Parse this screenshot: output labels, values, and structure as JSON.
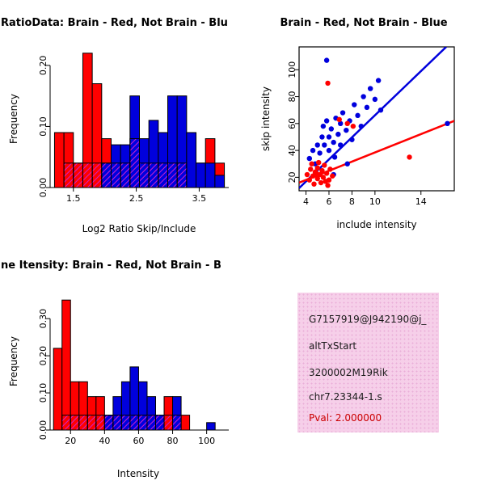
{
  "accent_colors": {
    "brain_red": "#FF0000",
    "not_brain_blue": "#0000DD",
    "overlap_hatch": "#CC22CC"
  },
  "info_box": {
    "bg_color": "#F6CFE9",
    "lines": [
      "G7157919@J942190@j_",
      "altTxStart",
      "3200002M19Rik",
      "chr7.23344-1.s"
    ],
    "pval": "Pval: 2.000000",
    "pval_color": "#CC0000"
  },
  "chart_data": [
    {
      "id": "hist-ratio",
      "type": "bar",
      "title": "RatioData: Brain - Red, Not Brain - Blu",
      "xlabel": "Log2 Ratio Skip/Include",
      "ylabel": "Frequency",
      "bin_start": 1.2,
      "bin_width": 0.15,
      "xlim": [
        1.13,
        3.97
      ],
      "ylim": [
        0,
        0.225
      ],
      "xticks": [
        1.5,
        2.5,
        3.5
      ],
      "xtick_labels": [
        "1.5",
        "2.5",
        "3.5"
      ],
      "yticks": [
        0,
        0.1,
        0.2
      ],
      "ytick_labels": [
        "0.00",
        "0.10",
        "0.20"
      ],
      "grid": false,
      "series": [
        {
          "name": "brain-red",
          "color": "#FF0000",
          "values": [
            0.09,
            0.09,
            0.04,
            0.22,
            0.17,
            0.08,
            0.04,
            0.04,
            0.04,
            0.04,
            0.08,
            0.04,
            0.04,
            0,
            0,
            0.04,
            0.08,
            0.04
          ]
        },
        {
          "name": "not-brain-blue",
          "color": "#0000DD",
          "values": [
            0,
            0,
            0,
            0,
            0,
            0.04,
            0.07,
            0.07,
            0.15,
            0.08,
            0.11,
            0.09,
            0.15,
            0.15,
            0.09,
            0.04,
            0.04,
            0.02
          ]
        },
        {
          "name": "overlap-hatched",
          "color": "#CC22CC",
          "hatch": true,
          "values": [
            0,
            0.04,
            0.04,
            0.04,
            0.04,
            0.04,
            0.04,
            0.04,
            0.08,
            0.04,
            0.04,
            0.04,
            0.04,
            0.04,
            0,
            0,
            0,
            0
          ]
        }
      ]
    },
    {
      "id": "scatter-intensity",
      "type": "scatter",
      "title": "Brain - Red, Not Brain - Blue",
      "xlabel": "include intensity",
      "ylabel": "skip intensity",
      "xlim": [
        3.4,
        16.9
      ],
      "ylim": [
        10,
        117
      ],
      "xticks": [
        4,
        6,
        8,
        10,
        14
      ],
      "xtick_labels": [
        "4",
        "6",
        "8",
        "10",
        "14"
      ],
      "yticks": [
        20,
        40,
        60,
        80,
        100
      ],
      "ytick_labels": [
        "20",
        "40",
        "60",
        "80",
        "100"
      ],
      "grid": false,
      "legend": "none",
      "series": [
        {
          "name": "not-brain-blue",
          "color": "#0000DD",
          "points": [
            [
              4.3,
              34
            ],
            [
              4.6,
              40
            ],
            [
              4.8,
              30
            ],
            [
              5.0,
              44
            ],
            [
              5.2,
              38
            ],
            [
              5.4,
              50
            ],
            [
              5.5,
              58
            ],
            [
              5.6,
              44
            ],
            [
              5.8,
              62
            ],
            [
              5.8,
              107
            ],
            [
              6.0,
              50
            ],
            [
              6.0,
              40
            ],
            [
              6.2,
              56
            ],
            [
              6.4,
              46
            ],
            [
              6.5,
              35
            ],
            [
              6.6,
              64
            ],
            [
              6.8,
              52
            ],
            [
              7.0,
              60
            ],
            [
              7.0,
              44
            ],
            [
              7.2,
              68
            ],
            [
              7.5,
              55
            ],
            [
              7.8,
              62
            ],
            [
              8.0,
              48
            ],
            [
              8.2,
              74
            ],
            [
              8.5,
              66
            ],
            [
              8.8,
              58
            ],
            [
              9.0,
              80
            ],
            [
              9.3,
              72
            ],
            [
              9.6,
              86
            ],
            [
              10.0,
              78
            ],
            [
              10.3,
              92
            ],
            [
              10.5,
              70
            ],
            [
              6.4,
              22
            ],
            [
              7.6,
              30
            ],
            [
              16.3,
              60
            ]
          ]
        },
        {
          "name": "brain-red",
          "color": "#FF0000",
          "points": [
            [
              4.1,
              22
            ],
            [
              4.3,
              18
            ],
            [
              4.4,
              26
            ],
            [
              4.6,
              21
            ],
            [
              4.7,
              15
            ],
            [
              4.8,
              24
            ],
            [
              5.0,
              19
            ],
            [
              5.0,
              27
            ],
            [
              5.2,
              22
            ],
            [
              5.3,
              16
            ],
            [
              5.4,
              25
            ],
            [
              5.5,
              20
            ],
            [
              5.6,
              29
            ],
            [
              5.8,
              23
            ],
            [
              6.0,
              18
            ],
            [
              6.1,
              26
            ],
            [
              6.3,
              21
            ],
            [
              4.5,
              30
            ],
            [
              5.1,
              31
            ],
            [
              5.9,
              14
            ],
            [
              5.7,
              17
            ],
            [
              4.9,
              23
            ],
            [
              5.9,
              90
            ],
            [
              6.9,
              63
            ],
            [
              7.6,
              60
            ],
            [
              8.1,
              58
            ],
            [
              13.0,
              35
            ]
          ]
        }
      ],
      "lines": [
        {
          "name": "blue-fit-line",
          "color": "#0000DD",
          "x1": 3.4,
          "y1": 12,
          "x2": 16.2,
          "y2": 117
        },
        {
          "name": "red-fit-line",
          "color": "#FF0000",
          "x1": 3.4,
          "y1": 16,
          "x2": 16.9,
          "y2": 62
        }
      ]
    },
    {
      "id": "hist-intensity",
      "type": "bar",
      "title": "ne Itensity: Brain - Red, Not Brain - B",
      "xlabel": "Intensity",
      "ylabel": "Frequency",
      "bin_start": 10,
      "bin_width": 5,
      "xlim": [
        8,
        113
      ],
      "ylim": [
        0,
        0.37
      ],
      "xticks": [
        20,
        40,
        60,
        80,
        100
      ],
      "xtick_labels": [
        "20",
        "40",
        "60",
        "80",
        "100"
      ],
      "yticks": [
        0,
        0.1,
        0.2,
        0.3
      ],
      "ytick_labels": [
        "0.00",
        "0.10",
        "0.20",
        "0.30"
      ],
      "grid": false,
      "series": [
        {
          "name": "brain-red",
          "color": "#FF0000",
          "values": [
            0.22,
            0.35,
            0.13,
            0.13,
            0.09,
            0.09,
            0.04,
            0.04,
            0,
            0,
            0,
            0,
            0,
            0.09,
            0,
            0.04,
            0,
            0,
            0,
            0
          ]
        },
        {
          "name": "not-brain-blue",
          "color": "#0000DD",
          "values": [
            0,
            0,
            0,
            0,
            0,
            0,
            0.04,
            0.09,
            0.13,
            0.17,
            0.13,
            0.09,
            0.04,
            0,
            0.09,
            0,
            0,
            0,
            0.02,
            0
          ]
        },
        {
          "name": "overlap-hatched",
          "color": "#CC22CC",
          "hatch": true,
          "values": [
            0,
            0.04,
            0.04,
            0.04,
            0.04,
            0.04,
            0.04,
            0.04,
            0.04,
            0.04,
            0.04,
            0.04,
            0.04,
            0.04,
            0.04,
            0,
            0,
            0,
            0,
            0
          ]
        }
      ]
    }
  ]
}
